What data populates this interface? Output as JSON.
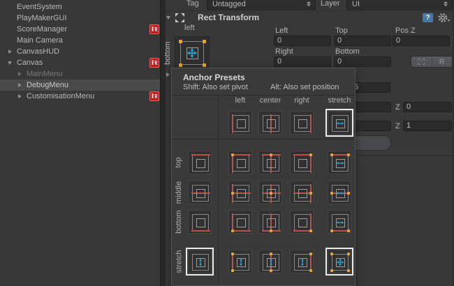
{
  "hierarchy": {
    "badge_glyph": "玩",
    "items": [
      {
        "label": "EventSystem",
        "level": 0,
        "arrow": "none",
        "badge": false,
        "dim": false,
        "selected": false
      },
      {
        "label": "PlayMakerGUI",
        "level": 0,
        "arrow": "none",
        "badge": false,
        "dim": false,
        "selected": false
      },
      {
        "label": "ScoreManager",
        "level": 0,
        "arrow": "none",
        "badge": true,
        "dim": false,
        "selected": false
      },
      {
        "label": "Main Camera",
        "level": 0,
        "arrow": "none",
        "badge": false,
        "dim": false,
        "selected": false
      },
      {
        "label": "CanvasHUD",
        "level": 0,
        "arrow": "collapsed",
        "badge": false,
        "dim": false,
        "selected": false
      },
      {
        "label": "Canvas",
        "level": 0,
        "arrow": "expanded",
        "badge": true,
        "dim": false,
        "selected": false
      },
      {
        "label": "MainMenu",
        "level": 1,
        "arrow": "collapsed",
        "badge": false,
        "dim": true,
        "selected": false
      },
      {
        "label": "DebugMenu",
        "level": 1,
        "arrow": "collapsed",
        "badge": false,
        "dim": false,
        "selected": true
      },
      {
        "label": "CustomisationMenu",
        "level": 1,
        "arrow": "collapsed",
        "badge": true,
        "dim": false,
        "selected": false
      }
    ]
  },
  "inspector": {
    "tag_label": "Tag",
    "tag_value": "Untagged",
    "layer_label": "Layer",
    "layer_value": "UI",
    "component_title": "Rect Transform",
    "anchor_top_label": "left",
    "anchor_side_label": "bottom",
    "row1": {
      "left_label": "Left",
      "left_value": "0",
      "top_label": "Top",
      "top_value": "0",
      "posz_label": "Pos Z",
      "posz_value": "0"
    },
    "row2": {
      "right_label": "Right",
      "right_value": "0",
      "bottom_label": "Bottom",
      "bottom_value": "0"
    },
    "raw_edit_label": "R",
    "partial": {
      "pivot_value": "5",
      "rotation_z_label": "Z",
      "rotation_z_value": "0",
      "scale_z_label": "Z",
      "scale_z_value": "1"
    }
  },
  "popup": {
    "title": "Anchor Presets",
    "hint_shift": "Shift: Also set pivot",
    "hint_alt": "Alt: Also set position",
    "col_headers": [
      "left",
      "center",
      "right",
      "stretch"
    ],
    "row_headers": [
      "top",
      "middle",
      "bottom",
      "stretch"
    ],
    "selected_presets": [
      "stretch--none",
      "none--stretch",
      "stretch--stretch"
    ]
  },
  "icons": {
    "help_glyph": "?"
  },
  "colors": {
    "anchor_dot": "#e8a33d",
    "stretch_arrow": "#2b9fd1",
    "anchor_line": "#b5534d",
    "selection_outline": "#ececec",
    "playmaker_red": "#c01b1b",
    "help_blue": "#4579ad"
  }
}
